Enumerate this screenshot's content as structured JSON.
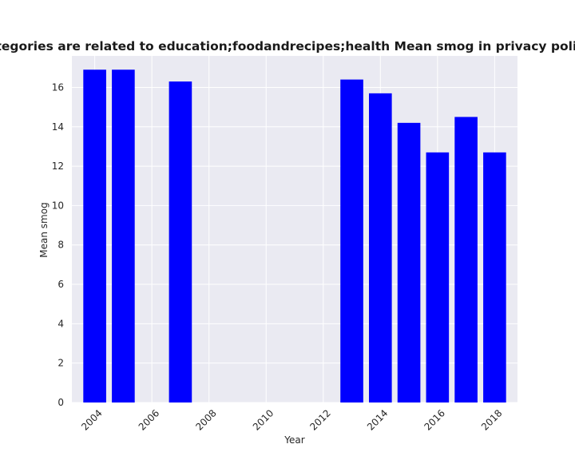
{
  "chart_data": {
    "type": "bar",
    "title": "hen categories are related to education;foodandrecipes;health Mean smog in privacy policies by",
    "xlabel": "Year",
    "ylabel": "Mean smog",
    "x": [
      2004,
      2005,
      2007,
      2013,
      2014,
      2015,
      2016,
      2017,
      2018
    ],
    "values": [
      16.9,
      16.9,
      16.3,
      16.4,
      15.7,
      14.2,
      12.7,
      14.5,
      12.7
    ],
    "xlim": [
      2003.2,
      2018.8
    ],
    "ylim": [
      0,
      17.6
    ],
    "xticks": [
      "2004",
      "2006",
      "2008",
      "2010",
      "2012",
      "2014",
      "2016",
      "2018"
    ],
    "yticks": [
      "0",
      "2",
      "4",
      "6",
      "8",
      "10",
      "12",
      "14",
      "16"
    ],
    "bar_color": "#0000ff",
    "background": "#eaeaf2",
    "grid": true
  }
}
